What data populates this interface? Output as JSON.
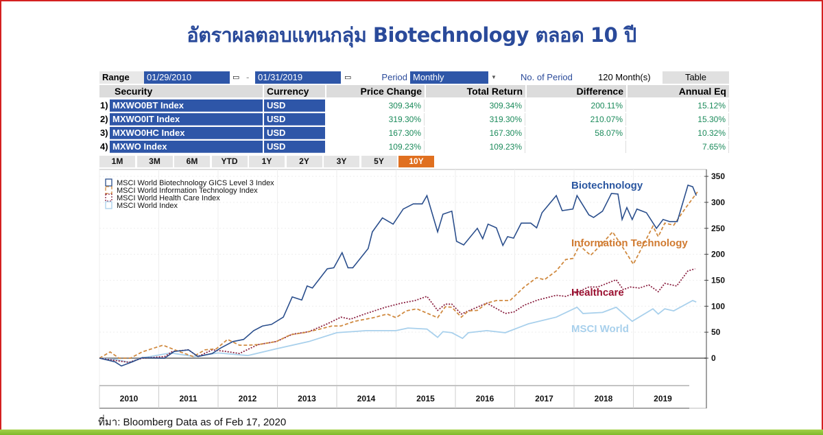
{
  "title": "อัตราผลตอบแทนกลุ่ม Biotechnology ตลอด 10 ปี",
  "toolbar": {
    "range_label": "Range",
    "start_date": "01/29/2010",
    "end_date": "01/31/2019",
    "dash": "-",
    "period_label": "Period",
    "period_value": "Monthly",
    "num_period_label": "No. of Period",
    "num_period_value": "120 Month(s)",
    "table_button": "Table",
    "calendar_icon": "calendar-icon",
    "dropdown_icon": "chevron-down-icon"
  },
  "table": {
    "headers": [
      "Security",
      "Currency",
      "Price Change",
      "Total Return",
      "Difference",
      "Annual Eq"
    ],
    "rows": [
      {
        "idx": "1)",
        "security": "MXWO0BT Index",
        "currency": "USD",
        "price_change": "309.34%",
        "total_return": "309.34%",
        "difference": "200.11%",
        "annual_eq": "15.12%"
      },
      {
        "idx": "2)",
        "security": "MXWO0IT Index",
        "currency": "USD",
        "price_change": "319.30%",
        "total_return": "319.30%",
        "difference": "210.07%",
        "annual_eq": "15.30%"
      },
      {
        "idx": "3)",
        "security": "MXWO0HC Index",
        "currency": "USD",
        "price_change": "167.30%",
        "total_return": "167.30%",
        "difference": "58.07%",
        "annual_eq": "10.32%"
      },
      {
        "idx": "4)",
        "security": "MXWO Index",
        "currency": "USD",
        "price_change": "109.23%",
        "total_return": "109.23%",
        "difference": "",
        "annual_eq": "7.65%"
      }
    ]
  },
  "periods": [
    "1M",
    "3M",
    "6M",
    "YTD",
    "1Y",
    "2Y",
    "3Y",
    "5Y",
    "10Y"
  ],
  "active_period": "10Y",
  "source": "ที่มา: Bloomberg Data as of Feb 17, 2020",
  "chart_data": {
    "type": "line",
    "xlabel": "",
    "ylabel": "",
    "x_ticks": [
      "2010",
      "2011",
      "2012",
      "2013",
      "2014",
      "2015",
      "2016",
      "2017",
      "2018",
      "2019"
    ],
    "y_ticks": [
      0,
      50,
      100,
      150,
      200,
      250,
      300,
      350
    ],
    "ylim": [
      -30,
      360
    ],
    "xlim": [
      2010,
      2020.2
    ],
    "y_axis_side": "right",
    "grid": true,
    "legend_position": "top-left",
    "legend": [
      "MSCI World Biotechnology GICS Level 3 Index",
      "MSCI World Information Technology Index",
      "MSCI World Health Care Index",
      "MSCI World Index"
    ],
    "series": [
      {
        "name": "Biotechnology",
        "legend": "MSCI World Biotechnology GICS Level 3 Index",
        "color": "#2a4e8c",
        "dash": "solid",
        "x": [
          2010,
          2010.26,
          2010.37,
          2010.56,
          2010.72,
          2011.1,
          2011.26,
          2011.5,
          2011.66,
          2011.9,
          2012.05,
          2012.25,
          2012.43,
          2012.6,
          2012.75,
          2012.9,
          2013.1,
          2013.25,
          2013.41,
          2013.5,
          2013.59,
          2013.84,
          2013.95,
          2014.09,
          2014.19,
          2014.27,
          2014.53,
          2014.6,
          2014.77,
          2014.95,
          2015.12,
          2015.29,
          2015.44,
          2015.52,
          2015.7,
          2015.79,
          2015.94,
          2016.02,
          2016.14,
          2016.37,
          2016.46,
          2016.55,
          2016.69,
          2016.8,
          2016.88,
          2016.98,
          2017.11,
          2017.27,
          2017.37,
          2017.46,
          2017.7,
          2017.8,
          2017.98,
          2018.05,
          2018.25,
          2018.33,
          2018.48,
          2018.63,
          2018.74,
          2018.81,
          2018.89,
          2018.98,
          2019.06,
          2019.22,
          2019.39,
          2019.5,
          2019.61,
          2019.74,
          2019.92,
          2020.0,
          2020.06
        ],
        "y": [
          0,
          -7,
          -15,
          -7,
          1,
          0,
          13,
          16,
          3,
          9,
          20,
          32,
          36,
          53,
          62,
          65,
          79,
          118,
          112,
          139,
          135,
          172,
          174,
          203,
          174,
          174,
          211,
          243,
          270,
          258,
          287,
          297,
          297,
          313,
          243,
          277,
          283,
          225,
          218,
          250,
          230,
          258,
          251,
          217,
          234,
          231,
          260,
          260,
          251,
          280,
          313,
          284,
          287,
          313,
          276,
          271,
          283,
          317,
          316,
          267,
          290,
          267,
          287,
          280,
          250,
          267,
          263,
          263,
          333,
          330,
          313
        ]
      },
      {
        "name": "Information Technology",
        "legend": "MSCI World Information Technology Index",
        "color": "#d08a40",
        "dash": "dashed",
        "x": [
          2010,
          2010.18,
          2010.33,
          2010.52,
          2010.72,
          2011.07,
          2011.34,
          2011.58,
          2011.78,
          2011.97,
          2012.16,
          2012.36,
          2012.51,
          2012.67,
          2012.98,
          2013.22,
          2013.45,
          2013.68,
          2013.92,
          2014.07,
          2014.3,
          2014.62,
          2014.85,
          2015.0,
          2015.17,
          2015.35,
          2015.7,
          2015.83,
          2015.94,
          2016.1,
          2016.22,
          2016.37,
          2016.53,
          2016.69,
          2016.92,
          2017.16,
          2017.37,
          2017.5,
          2017.7,
          2017.86,
          2017.98,
          2018.09,
          2018.28,
          2018.48,
          2018.65,
          2018.8,
          2019.0,
          2019.1,
          2019.33,
          2019.42,
          2019.53,
          2019.68,
          2019.88,
          2020.08
        ],
        "y": [
          0,
          12,
          0,
          0,
          12,
          25,
          13,
          3,
          16,
          18,
          36,
          25,
          25,
          26,
          32,
          45,
          49,
          55,
          62,
          62,
          71,
          78,
          85,
          78,
          91,
          95,
          78,
          99,
          98,
          79,
          91,
          92,
          106,
          111,
          111,
          137,
          155,
          151,
          168,
          190,
          192,
          217,
          198,
          221,
          243,
          217,
          181,
          203,
          254,
          234,
          260,
          256,
          289,
          320
        ]
      },
      {
        "name": "Healthcare",
        "legend": "MSCI World Health Care Index",
        "color": "#8a2040",
        "dash": "dotted",
        "x": [
          2010,
          2010.3,
          2010.5,
          2010.72,
          2011.1,
          2011.23,
          2011.5,
          2011.66,
          2011.9,
          2012.13,
          2012.36,
          2012.67,
          2012.98,
          2013.25,
          2013.53,
          2013.84,
          2014.07,
          2014.23,
          2014.47,
          2014.82,
          2015.09,
          2015.32,
          2015.52,
          2015.7,
          2015.83,
          2015.94,
          2016.1,
          2016.22,
          2016.53,
          2016.84,
          2016.99,
          2017.16,
          2017.39,
          2017.7,
          2017.86,
          2018.01,
          2018.25,
          2018.4,
          2018.71,
          2018.83,
          2018.95,
          2019.1,
          2019.26,
          2019.42,
          2019.53,
          2019.73,
          2019.92,
          2020.04
        ],
        "y": [
          0,
          -5,
          -8,
          0,
          3,
          13,
          16,
          3,
          16,
          13,
          9,
          26,
          32,
          46,
          51,
          66,
          79,
          75,
          85,
          98,
          106,
          111,
          119,
          92,
          104,
          104,
          85,
          91,
          106,
          86,
          89,
          102,
          112,
          121,
          119,
          125,
          137,
          137,
          151,
          132,
          137,
          135,
          141,
          128,
          144,
          139,
          168,
          172
        ]
      },
      {
        "name": "MSCI World",
        "legend": "MSCI World Index",
        "color": "#a8d0ec",
        "dash": "solid",
        "x": [
          2010,
          2010.3,
          2010.5,
          2010.7,
          2011.2,
          2011.6,
          2012.0,
          2012.5,
          2012.98,
          2013.53,
          2014.0,
          2014.5,
          2015.0,
          2015.2,
          2015.52,
          2015.7,
          2015.79,
          2015.94,
          2016.12,
          2016.22,
          2016.53,
          2016.84,
          2017.23,
          2017.7,
          2018.05,
          2018.15,
          2018.48,
          2018.71,
          2018.98,
          2019.33,
          2019.42,
          2019.53,
          2019.68,
          2020.0,
          2020.06
        ],
        "y": [
          0,
          -3,
          -8,
          0,
          10,
          3,
          10,
          5,
          18,
          32,
          49,
          53,
          53,
          58,
          56,
          40,
          51,
          49,
          38,
          49,
          53,
          49,
          66,
          79,
          98,
          86,
          88,
          98,
          71,
          95,
          85,
          95,
          91,
          111,
          108
        ]
      }
    ],
    "annotations": [
      {
        "text": "Biotechnology",
        "color": "#2a56a0"
      },
      {
        "text": "Information Technology",
        "color": "#d07a30"
      },
      {
        "text": "Healthcare",
        "color": "#9a1030"
      },
      {
        "text": "MSCI World",
        "color": "#a8d0ec"
      }
    ]
  }
}
